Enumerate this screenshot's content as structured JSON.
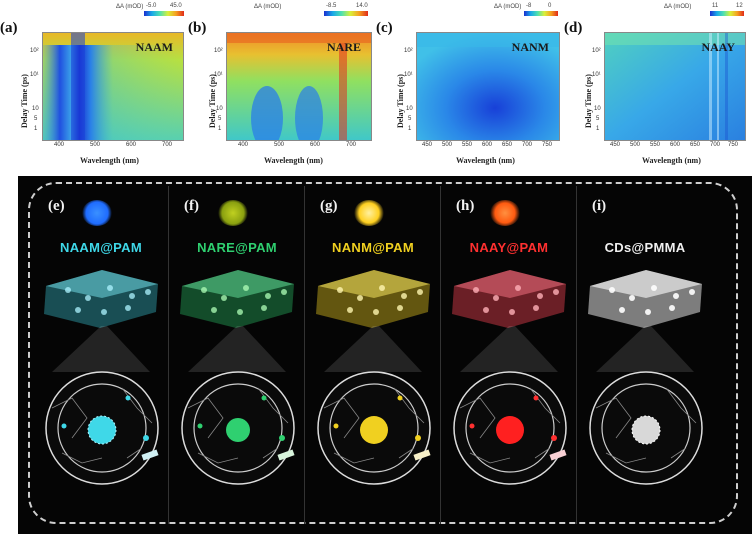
{
  "panels_top": [
    {
      "label": "(a)",
      "sample": "NAAM",
      "colorbar_title": "ΔA (mOD)",
      "cb_min": "-5.0",
      "cb_max": "45.0",
      "ylabel": "Delay Time (ps)",
      "xlabel": "Wavelength (nm)",
      "xticks": [
        "400",
        "500",
        "600",
        "700"
      ],
      "yticks": [
        "10²",
        "10¹",
        "10",
        "5",
        "1",
        "0"
      ]
    },
    {
      "label": "(b)",
      "sample": "NARE",
      "colorbar_title": "ΔA (mOD)",
      "cb_min": "-8.5",
      "cb_max": "14.0",
      "ylabel": "Delay Time (ps)",
      "xlabel": "Wavelength (nm)",
      "xticks": [
        "400",
        "500",
        "600",
        "700"
      ],
      "yticks": [
        "10²",
        "10¹",
        "10",
        "5",
        "1",
        "0"
      ]
    },
    {
      "label": "(c)",
      "sample": "NANM",
      "colorbar_title": "ΔA (mOD)",
      "cb_min": "-8",
      "cb_max": "0",
      "ylabel": "Delay Time (ps)",
      "xlabel": "Wavelength (nm)",
      "xticks": [
        "450",
        "500",
        "550",
        "600",
        "650",
        "700",
        "750"
      ],
      "yticks": [
        "10²",
        "10¹",
        "10",
        "5",
        "1",
        "0"
      ]
    },
    {
      "label": "(d)",
      "sample": "NAAY",
      "colorbar_title": "ΔA (mOD)",
      "cb_min": "11",
      "cb_max": "12",
      "ylabel": "Delay Time (ps)",
      "xlabel": "Wavelength (nm)",
      "xticks": [
        "450",
        "500",
        "550",
        "600",
        "650",
        "700",
        "750"
      ],
      "yticks": [
        "10²",
        "10¹",
        "10",
        "5",
        "1",
        "0"
      ]
    }
  ],
  "panels_bottom": [
    {
      "label": "(e)",
      "material": "NAAM@PAM",
      "color": "#3fd8e8",
      "glow": "#1f6cff"
    },
    {
      "label": "(f)",
      "material": "NARE@PAM",
      "color": "#2fd070",
      "glow": "#a8c81a"
    },
    {
      "label": "(g)",
      "material": "NANM@PAM",
      "color": "#f0d020",
      "glow": "#ffd020"
    },
    {
      "label": "(h)",
      "material": "NAAY@PAM",
      "color": "#ff3030",
      "glow": "#ff5a10"
    },
    {
      "label": "(i)",
      "material": "CDs@PMMA",
      "color": "#f0f0f0",
      "glow": ""
    }
  ]
}
